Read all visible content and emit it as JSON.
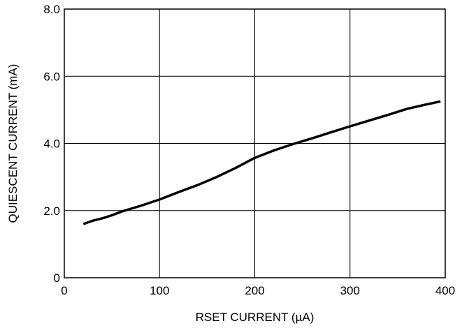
{
  "chart_data": {
    "type": "line",
    "title": "",
    "xlabel": "RSET CURRENT (µA)",
    "ylabel": "QUIESCENT CURRENT (mA)",
    "xlim": [
      0,
      400
    ],
    "ylim": [
      0,
      8
    ],
    "xticks": [
      0,
      100,
      200,
      300,
      400
    ],
    "xtick_labels": [
      "0",
      "100",
      "200",
      "300",
      "400"
    ],
    "yticks": [
      0,
      2,
      4,
      6,
      8
    ],
    "ytick_labels": [
      "0",
      "2.0",
      "4.0",
      "6.0",
      "8.0"
    ],
    "grid": true,
    "series": [
      {
        "color": "#000000",
        "x": [
          20,
          30,
          40,
          50,
          60,
          80,
          100,
          120,
          140,
          160,
          180,
          200,
          220,
          240,
          260,
          280,
          300,
          320,
          340,
          360,
          380,
          395
        ],
        "y": [
          1.6,
          1.7,
          1.77,
          1.86,
          1.97,
          2.14,
          2.33,
          2.55,
          2.76,
          3.0,
          3.27,
          3.57,
          3.79,
          3.98,
          4.15,
          4.33,
          4.51,
          4.68,
          4.85,
          5.03,
          5.16,
          5.25
        ]
      }
    ]
  }
}
